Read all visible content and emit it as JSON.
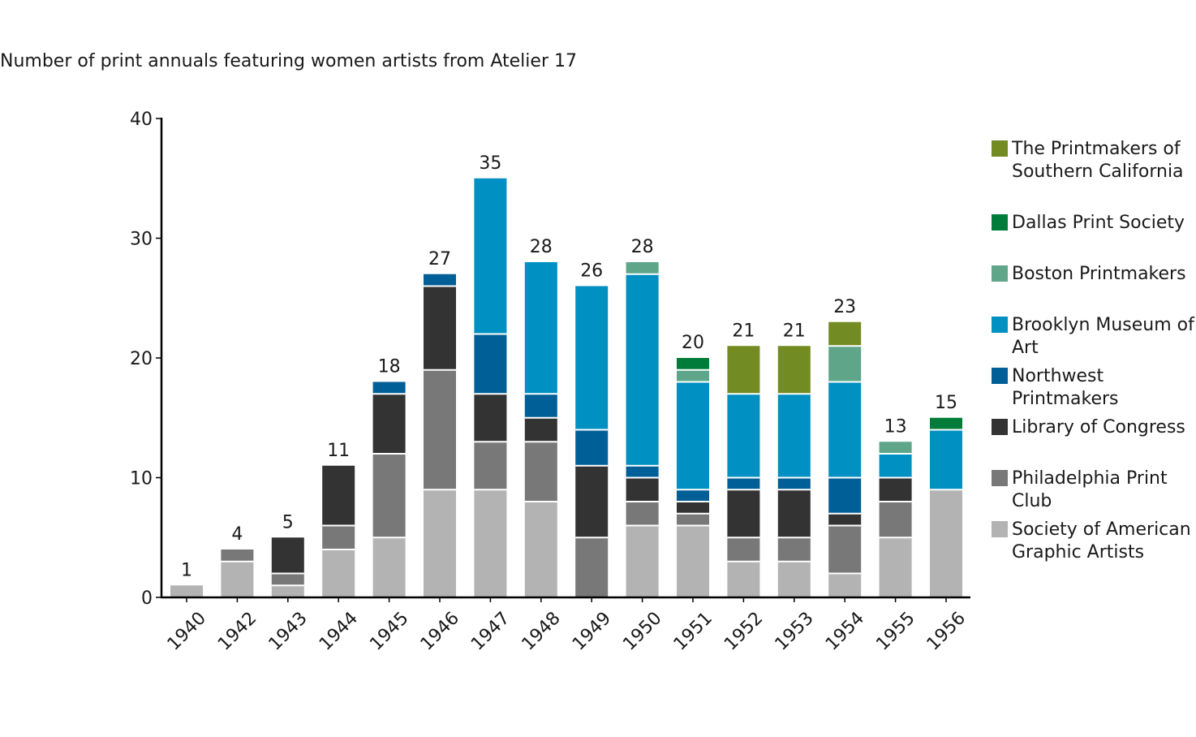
{
  "chart_data": {
    "type": "bar",
    "stacked": true,
    "title": "Number of print annuals featuring women artists from Atelier 17",
    "xlabel": "",
    "ylabel": "",
    "ylim": [
      0,
      40
    ],
    "yticks": [
      0,
      10,
      20,
      30,
      40
    ],
    "grid": false,
    "legend_position": "right",
    "categories": [
      "1940",
      "1942",
      "1943",
      "1944",
      "1945",
      "1946",
      "1947",
      "1948",
      "1949",
      "1950",
      "1951",
      "1952",
      "1953",
      "1954",
      "1955",
      "1956"
    ],
    "totals": [
      1,
      4,
      5,
      11,
      18,
      27,
      35,
      28,
      26,
      28,
      20,
      21,
      21,
      23,
      13,
      15
    ],
    "series": [
      {
        "name": "Society of American Graphic Artists",
        "color": "#b3b3b3",
        "values": [
          1,
          3,
          1,
          4,
          5,
          9,
          9,
          8,
          0,
          6,
          6,
          3,
          3,
          2,
          5,
          9
        ]
      },
      {
        "name": "Philadelphia Print Club",
        "color": "#787878",
        "values": [
          0,
          1,
          1,
          2,
          7,
          10,
          4,
          5,
          5,
          2,
          1,
          2,
          2,
          4,
          3,
          0
        ]
      },
      {
        "name": "Library of Congress",
        "color": "#333333",
        "values": [
          0,
          0,
          3,
          5,
          5,
          7,
          4,
          2,
          6,
          2,
          1,
          4,
          4,
          1,
          2,
          0
        ]
      },
      {
        "name": "Northwest Printmakers",
        "color": "#005f96",
        "values": [
          0,
          0,
          0,
          0,
          1,
          1,
          5,
          2,
          3,
          1,
          1,
          1,
          1,
          3,
          0,
          0
        ]
      },
      {
        "name": "Brooklyn Museum of Art",
        "color": "#0090c1",
        "values": [
          0,
          0,
          0,
          0,
          0,
          0,
          13,
          11,
          12,
          16,
          9,
          7,
          7,
          8,
          2,
          5
        ]
      },
      {
        "name": "Boston Printmakers",
        "color": "#5ea58a",
        "values": [
          0,
          0,
          0,
          0,
          0,
          0,
          0,
          0,
          0,
          1,
          1,
          0,
          0,
          3,
          1,
          0
        ]
      },
      {
        "name": "Dallas Print Society",
        "color": "#007c3a",
        "values": [
          0,
          0,
          0,
          0,
          0,
          0,
          0,
          0,
          0,
          0,
          1,
          0,
          0,
          0,
          0,
          1
        ]
      },
      {
        "name": "The Printmakers of Southern California",
        "color": "#738b23",
        "values": [
          0,
          0,
          0,
          0,
          0,
          0,
          0,
          0,
          0,
          0,
          0,
          4,
          4,
          2,
          0,
          0
        ]
      }
    ],
    "legend_order": [
      7,
      6,
      5,
      4,
      3,
      2,
      1,
      0
    ]
  }
}
